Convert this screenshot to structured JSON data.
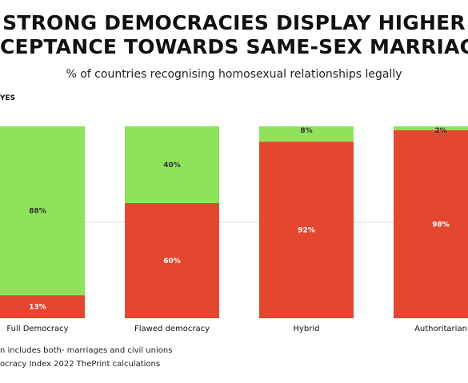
{
  "header": {
    "title_line1": "STRONG DEMOCRACIES DISPLAY HIGHER",
    "title_line2": "CEPTANCE TOWARDS SAME-SEX MARRIAG",
    "subtitle": "% of countries recognising homosexual relationships legally"
  },
  "legend": {
    "label": "YES"
  },
  "footnotes": {
    "line1": "n includes both- marriages and civil unions",
    "line2": "ocracy Index 2022 ThePrint calculations"
  },
  "colors": {
    "yes": "#8ee35a",
    "no": "#e3472f",
    "grid": "#dddddd"
  },
  "chart_data": {
    "type": "bar",
    "stacked": true,
    "categories": [
      "Full Democracy",
      "Flawed democracy",
      "Hybrid",
      "Authoritarian"
    ],
    "series": [
      {
        "name": "YES",
        "values": [
          88,
          40,
          8,
          2
        ],
        "labels": [
          "88%",
          "40%",
          "8%",
          "2%"
        ]
      },
      {
        "name": "",
        "values": [
          13,
          60,
          92,
          98
        ],
        "labels": [
          "13%",
          "60%",
          "92%",
          "98%"
        ]
      }
    ],
    "ylim": [
      0,
      100
    ],
    "grid": true
  }
}
